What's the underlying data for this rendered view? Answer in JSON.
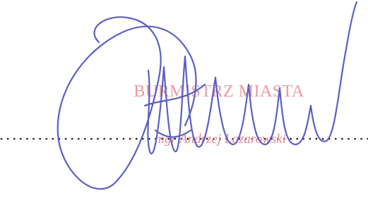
{
  "stamp": {
    "title": "BURMISTRZ MIASTA",
    "name": "mgr Andrzej Lazarowski"
  }
}
